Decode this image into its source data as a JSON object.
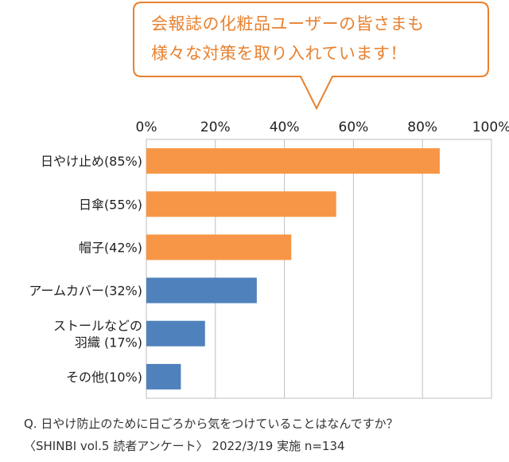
{
  "callout": {
    "line1": "会報誌の化粧品ユーザーの皆さまも",
    "line2": "様々な対策を取り入れています！"
  },
  "chart_data": {
    "type": "bar",
    "orientation": "horizontal",
    "x_ticks": [
      "0%",
      "20%",
      "40%",
      "60%",
      "80%",
      "100%"
    ],
    "xlim": [
      0,
      100
    ],
    "grid": true,
    "categories": [
      {
        "label": [
          "日やけ止め(85%)"
        ],
        "value": 85,
        "color": "#f79646"
      },
      {
        "label": [
          "日傘(55%)"
        ],
        "value": 55,
        "color": "#f79646"
      },
      {
        "label": [
          "帽子(42%)"
        ],
        "value": 42,
        "color": "#f79646"
      },
      {
        "label": [
          "アームカバー(32%)"
        ],
        "value": 32,
        "color": "#4f81bd"
      },
      {
        "label": [
          "ストールなどの",
          "羽織 (17%)"
        ],
        "value": 17,
        "color": "#4f81bd"
      },
      {
        "label": [
          "その他(10%)"
        ],
        "value": 10,
        "color": "#4f81bd"
      }
    ]
  },
  "footer": {
    "question": "Q. 日やけ防止のために日ごろから気をつけていることはなんですか？",
    "source": "〈SHINBI vol.5 読者アンケート〉 2022/3/19 実施 n=134"
  }
}
